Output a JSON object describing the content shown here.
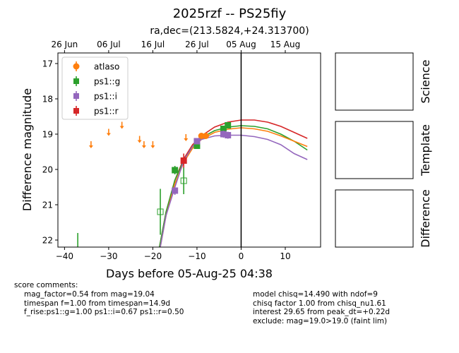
{
  "chart_data": {
    "type": "scatter",
    "title": "2025rzf -- PS25fiy",
    "subtitle": "ra,dec=(213.5824,+24.313700)",
    "xlabel": "Days before 05-Aug-25 04:38",
    "ylabel": "Difference magnitude",
    "xlim": [
      -41.5,
      18
    ],
    "ylim": [
      22.2,
      16.7
    ],
    "y_inverted": true,
    "xticks": [
      -40,
      -30,
      -20,
      -10,
      0,
      10
    ],
    "yticks": [
      17,
      18,
      19,
      20,
      21,
      22
    ],
    "top_axis": {
      "ticks": [
        {
          "x": -40,
          "label": "26 Jun"
        },
        {
          "x": -30,
          "label": "06 Jul"
        },
        {
          "x": -20,
          "label": "16 Jul"
        },
        {
          "x": -10,
          "label": "26 Jul"
        },
        {
          "x": 0,
          "label": "05 Aug"
        },
        {
          "x": 10,
          "label": "15 Aug"
        }
      ]
    },
    "peak_line_x": 0,
    "legend": {
      "placement": "upper-left",
      "entries": [
        {
          "name": "atlaso",
          "color": "#ff7f0e",
          "marker": "circle"
        },
        {
          "name": "ps1::g",
          "color": "#2ca02c",
          "marker": "square"
        },
        {
          "name": "ps1::i",
          "color": "#9467bd",
          "marker": "square"
        },
        {
          "name": "ps1::r",
          "color": "#d62728",
          "marker": "square"
        }
      ]
    },
    "upper_limits": [
      {
        "x": -34.0,
        "y": 19.3
      },
      {
        "x": -30.0,
        "y": 18.95
      },
      {
        "x": -27.0,
        "y": 18.75
      },
      {
        "x": -23.0,
        "y": 19.15
      },
      {
        "x": -22.0,
        "y": 19.3
      },
      {
        "x": -20.0,
        "y": 19.3
      },
      {
        "x": -12.5,
        "y": 19.1
      }
    ],
    "series": [
      {
        "name": "atlaso",
        "color": "#ff7f0e",
        "marker": "circle",
        "points": [
          {
            "x": -9.0,
            "y": 19.05,
            "err": 0.08
          },
          {
            "x": -8.0,
            "y": 19.05,
            "err": 0.08
          }
        ]
      },
      {
        "name": "ps1::g",
        "color": "#2ca02c",
        "marker": "square",
        "points": [
          {
            "x": -37.0,
            "y": 22.3,
            "err": 0.5,
            "open": true
          },
          {
            "x": -18.3,
            "y": 21.2,
            "err": 0.65,
            "open": true
          },
          {
            "x": -15.0,
            "y": 20.02,
            "err": 0.12
          },
          {
            "x": -13.0,
            "y": 20.32,
            "err": 0.38,
            "open": true
          },
          {
            "x": -10.0,
            "y": 19.33,
            "err": 0.08
          },
          {
            "x": -4.0,
            "y": 18.85,
            "err": 0.08
          },
          {
            "x": -3.0,
            "y": 18.75,
            "err": 0.08
          }
        ]
      },
      {
        "name": "ps1::i",
        "color": "#9467bd",
        "marker": "square",
        "points": [
          {
            "x": -15.0,
            "y": 20.6,
            "err": 0.12
          },
          {
            "x": -10.0,
            "y": 19.2,
            "err": 0.08
          },
          {
            "x": -4.0,
            "y": 19.0,
            "err": 0.1
          },
          {
            "x": -3.0,
            "y": 19.03,
            "err": 0.1
          }
        ]
      },
      {
        "name": "ps1::r",
        "color": "#d62728",
        "marker": "square",
        "points": [
          {
            "x": -13.0,
            "y": 19.75,
            "err": 0.2
          }
        ]
      }
    ],
    "model_curves": [
      {
        "name": "ps1::r",
        "color": "#d62728",
        "points": [
          [
            -18.5,
            22.2
          ],
          [
            -17,
            21.2
          ],
          [
            -15,
            20.3
          ],
          [
            -13,
            19.7
          ],
          [
            -11,
            19.3
          ],
          [
            -9,
            19.05
          ],
          [
            -6,
            18.8
          ],
          [
            -3,
            18.66
          ],
          [
            0,
            18.6
          ],
          [
            3,
            18.6
          ],
          [
            6,
            18.66
          ],
          [
            9,
            18.78
          ],
          [
            12,
            18.95
          ],
          [
            15,
            19.12
          ]
        ]
      },
      {
        "name": "ps1::g",
        "color": "#2ca02c",
        "points": [
          [
            -18.5,
            22.2
          ],
          [
            -17,
            21.2
          ],
          [
            -15,
            20.3
          ],
          [
            -13,
            19.75
          ],
          [
            -11,
            19.35
          ],
          [
            -9,
            19.1
          ],
          [
            -6,
            18.9
          ],
          [
            -3,
            18.8
          ],
          [
            0,
            18.76
          ],
          [
            3,
            18.78
          ],
          [
            6,
            18.85
          ],
          [
            9,
            19.0
          ],
          [
            12,
            19.2
          ],
          [
            15,
            19.45
          ]
        ]
      },
      {
        "name": "atlaso",
        "color": "#ff7f0e",
        "points": [
          [
            -18.3,
            22.2
          ],
          [
            -17,
            21.3
          ],
          [
            -15,
            20.4
          ],
          [
            -13,
            19.8
          ],
          [
            -11,
            19.4
          ],
          [
            -9,
            19.15
          ],
          [
            -6,
            18.95
          ],
          [
            -3,
            18.86
          ],
          [
            0,
            18.82
          ],
          [
            3,
            18.85
          ],
          [
            6,
            18.92
          ],
          [
            9,
            19.05
          ],
          [
            12,
            19.2
          ],
          [
            15,
            19.35
          ]
        ]
      },
      {
        "name": "ps1::i",
        "color": "#9467bd",
        "points": [
          [
            -18.3,
            22.2
          ],
          [
            -17,
            21.3
          ],
          [
            -15,
            20.5
          ],
          [
            -13,
            19.75
          ],
          [
            -11,
            19.35
          ],
          [
            -9,
            19.15
          ],
          [
            -6,
            19.05
          ],
          [
            -3,
            19.03
          ],
          [
            0,
            19.03
          ],
          [
            3,
            19.07
          ],
          [
            6,
            19.15
          ],
          [
            9,
            19.3
          ],
          [
            12,
            19.55
          ],
          [
            15,
            19.72
          ]
        ]
      }
    ],
    "panels": [
      "Science",
      "Template",
      "Difference"
    ]
  },
  "comments": {
    "heading": "score comments:",
    "left": [
      "mag_factor=0.54 from mag=19.04",
      "timespan f=1.00 from timespan=14.9d",
      "f_rise:ps1::g=1.00 ps1::i=0.67 ps1::r=0.50"
    ],
    "right": [
      "model chisq=14.490 with ndof=9",
      "chisq factor 1.00 from chisq_nu1.61",
      "interest 29.65 from peak_dt=+0.22d",
      "exclude: mag=19.0>19.0 (faint lim)"
    ]
  }
}
